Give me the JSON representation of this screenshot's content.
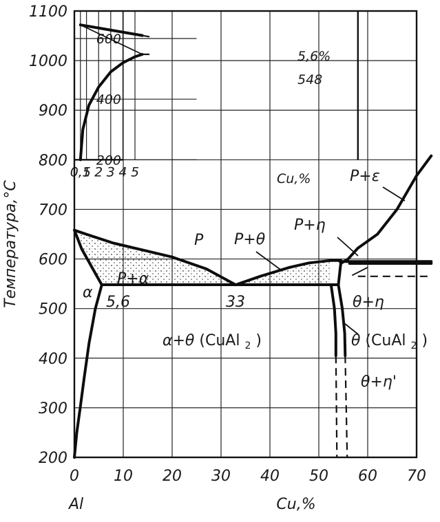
{
  "chart_data": [
    {
      "type": "phase-diagram",
      "system": "Al-Cu",
      "xlabel": "Cu,%",
      "x_origin_label": "Al",
      "ylabel": "Температура,°С",
      "xlim": [
        0,
        70
      ],
      "ylim": [
        200,
        1100
      ],
      "x_ticks": [
        "0",
        "10",
        "20",
        "30",
        "40",
        "50",
        "60",
        "70"
      ],
      "y_ticks": [
        "200",
        "300",
        "400",
        "500",
        "600",
        "700",
        "800",
        "900",
        "1000",
        "1100"
      ],
      "regions": {
        "liquid": "Р",
        "alpha": "α",
        "liquid_alpha": "Р+α",
        "liquid_theta": "Р+θ",
        "liquid_eta": "Р+η",
        "liquid_epsilon": "Р+ε",
        "alpha_theta": "α+θ",
        "alpha_theta_compound": "(CuAl",
        "alpha_theta_sub": "2",
        "alpha_theta_close": ")",
        "theta": "θ",
        "theta_compound": "(CuAl",
        "theta_sub": "2",
        "theta_close": ")",
        "theta_eta": "θ+η",
        "theta_eta_prime": "θ+η'"
      },
      "annotations": {
        "eutectic_solubility": "5,6",
        "eutectic_composition": "33"
      },
      "curves": {
        "liquidus_alpha": [
          [
            0,
            658
          ],
          [
            3,
            648
          ],
          [
            8,
            632
          ],
          [
            14,
            618
          ],
          [
            20,
            604
          ],
          [
            27,
            580
          ],
          [
            33,
            548
          ]
        ],
        "solidus_alpha": [
          [
            0,
            658
          ],
          [
            1.5,
            620
          ],
          [
            3.5,
            585
          ],
          [
            5.6,
            548
          ]
        ],
        "solvus_alpha": [
          [
            0,
            200
          ],
          [
            0.5,
            250
          ],
          [
            1.2,
            300
          ],
          [
            2,
            360
          ],
          [
            3,
            430
          ],
          [
            4.3,
            500
          ],
          [
            5.6,
            548
          ]
        ],
        "liquidus_theta": [
          [
            33,
            548
          ],
          [
            38,
            565
          ],
          [
            44,
            583
          ],
          [
            48,
            592
          ],
          [
            52.5,
            597
          ]
        ],
        "theta_left": [
          [
            52.5,
            548
          ],
          [
            53.2,
            500
          ],
          [
            53.5,
            450
          ],
          [
            53.5,
            405
          ]
        ],
        "theta_right": [
          [
            54,
            548
          ],
          [
            54.8,
            500
          ],
          [
            55.3,
            450
          ],
          [
            55.4,
            405
          ]
        ],
        "theta_right_top": [
          [
            54,
            548
          ],
          [
            54.5,
            591
          ]
        ],
        "theta_left_dashed": [
          [
            53.5,
            405
          ],
          [
            53.6,
            300
          ],
          [
            53.7,
            200
          ]
        ],
        "theta_right_dashed": [
          [
            55.4,
            405
          ],
          [
            55.6,
            300
          ],
          [
            55.8,
            200
          ]
        ],
        "liquidus_eta": [
          [
            54.5,
            591
          ],
          [
            56,
            600
          ],
          [
            58,
            622
          ]
        ],
        "liquidus_epsilon": [
          [
            58,
            622
          ],
          [
            62,
            650
          ],
          [
            66,
            700
          ],
          [
            70,
            768
          ],
          [
            73,
            808
          ]
        ],
        "eta_eutectoid_upper": [
          [
            54.3,
            595
          ],
          [
            73,
            595
          ]
        ],
        "eta_eutectoid_lower": [
          [
            56.3,
            591
          ],
          [
            73,
            591
          ]
        ],
        "eta_dashed_step": [
          [
            58,
            565
          ],
          [
            73,
            565
          ]
        ],
        "eta_diagonal": [
          [
            56.8,
            567
          ],
          [
            60,
            583
          ]
        ]
      },
      "horizontal_lines": [
        {
          "name": "eutectic",
          "t": 548,
          "x_from": 5.6,
          "x_to": 54
        }
      ]
    },
    {
      "type": "inset",
      "description_level": "inset",
      "xlim": [
        0.5,
        5.6
      ],
      "ylim": [
        200,
        650
      ],
      "x_ticks": [
        "0,5",
        "1",
        "2",
        "3",
        "4",
        "5"
      ],
      "x_unit": "Cu,%",
      "y_ticks": [
        "200",
        "400",
        "600"
      ],
      "labels": {
        "max_solubility": "5,6%",
        "eutectic_temperature": "548"
      },
      "solvus": [
        [
          0.5,
          200
        ],
        [
          0.7,
          300
        ],
        [
          1.2,
          380
        ],
        [
          2,
          440
        ],
        [
          3,
          490
        ],
        [
          4,
          520
        ],
        [
          5,
          540
        ],
        [
          5.6,
          548
        ]
      ],
      "upper_line": [
        [
          0.5,
          645
        ],
        [
          5.6,
          610
        ]
      ],
      "lower_line": [
        [
          0.5,
          645
        ],
        [
          5.6,
          548
        ]
      ]
    }
  ]
}
